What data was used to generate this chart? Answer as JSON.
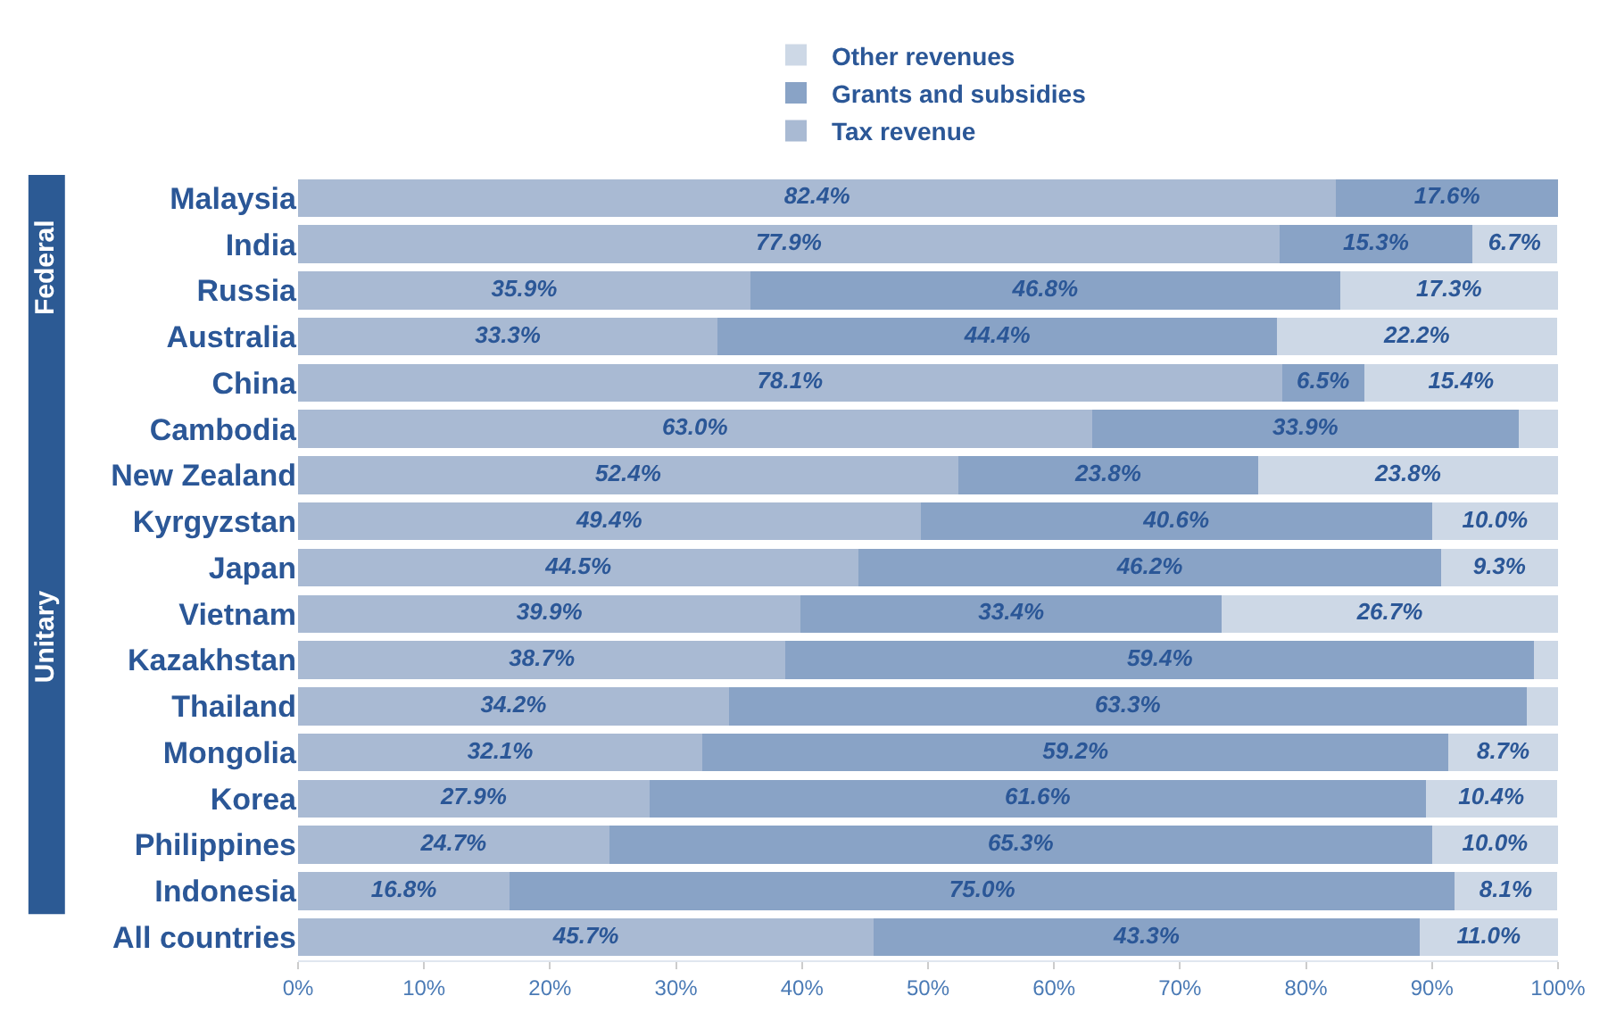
{
  "chart_data": {
    "type": "bar",
    "orientation": "horizontal",
    "stacked": true,
    "categories": [
      "Malaysia",
      "India",
      "Russia",
      "Australia",
      "China",
      "Cambodia",
      "New Zealand",
      "Kyrgyzstan",
      "Japan",
      "Vietnam",
      "Kazakhstan",
      "Thailand",
      "Mongolia",
      "Korea",
      "Philippines",
      "Indonesia",
      "All countries"
    ],
    "series": [
      {
        "name": "Tax revenue",
        "color": "#a9bad3",
        "values": [
          82.4,
          77.9,
          35.9,
          33.3,
          78.1,
          63.0,
          52.4,
          49.4,
          44.5,
          39.9,
          38.7,
          34.2,
          32.1,
          27.9,
          24.7,
          16.8,
          45.7
        ],
        "value_labels": [
          "82.4%",
          "77.9%",
          "35.9%",
          "33.3%",
          "78.1%",
          "63.0%",
          "52.4%",
          "49.4%",
          "44.5%",
          "39.9%",
          "38.7%",
          "34.2%",
          "32.1%",
          "27.9%",
          "24.7%",
          "16.8%",
          "45.7%"
        ]
      },
      {
        "name": "Grants and subsidies",
        "color": "#89a3c6",
        "values": [
          17.6,
          15.3,
          46.8,
          44.4,
          6.5,
          33.9,
          23.8,
          40.6,
          46.2,
          33.4,
          59.4,
          63.3,
          59.2,
          61.6,
          65.3,
          75.0,
          43.3
        ],
        "value_labels": [
          "17.6%",
          "15.3%",
          "46.8%",
          "44.4%",
          "6.5%",
          "33.9%",
          "23.8%",
          "40.6%",
          "46.2%",
          "33.4%",
          "59.4%",
          "63.3%",
          "59.2%",
          "61.6%",
          "65.3%",
          "75.0%",
          "43.3%"
        ]
      },
      {
        "name": "Other revenues",
        "color": "#cdd8e6",
        "values": [
          null,
          6.7,
          17.3,
          22.2,
          15.4,
          3.1,
          23.8,
          10.0,
          9.3,
          26.7,
          1.9,
          2.5,
          8.7,
          10.4,
          10.0,
          8.1,
          11.0
        ],
        "value_labels": [
          null,
          "6.7%",
          "17.3%",
          "22.2%",
          "15.4%",
          null,
          "23.8%",
          "10.0%",
          "9.3%",
          "26.7%",
          null,
          null,
          "8.7%",
          "10.4%",
          "10.0%",
          "8.1%",
          "11.0%"
        ]
      }
    ],
    "xlim": [
      0,
      100
    ],
    "xticks": [
      {
        "value": 0,
        "label": "0%"
      },
      {
        "value": 10,
        "label": "10%"
      },
      {
        "value": 20,
        "label": "20%"
      },
      {
        "value": 30,
        "label": "30%"
      },
      {
        "value": 40,
        "label": "40%"
      },
      {
        "value": 50,
        "label": "50%"
      },
      {
        "value": 60,
        "label": "60%"
      },
      {
        "value": 70,
        "label": "70%"
      },
      {
        "value": 80,
        "label": "80%"
      },
      {
        "value": 90,
        "label": "90%"
      },
      {
        "value": 100,
        "label": "100%"
      }
    ],
    "annotations": [
      "Federal",
      "Unitary"
    ],
    "legend": "top"
  }
}
